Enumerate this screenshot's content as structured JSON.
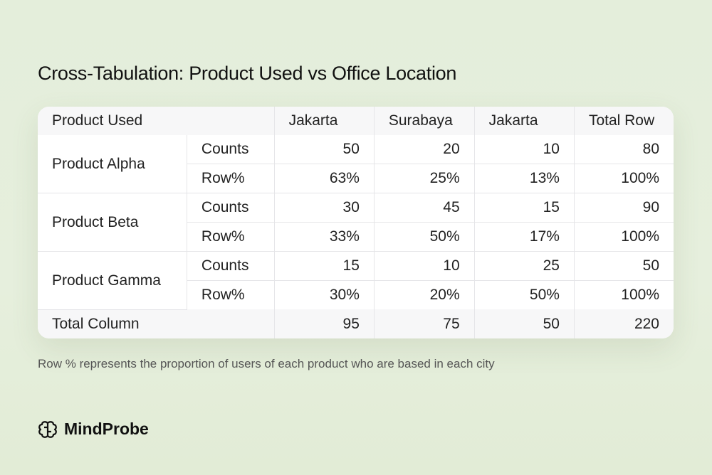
{
  "title": "Cross-Tabulation: Product Used vs Office Location",
  "table": {
    "header": [
      "Product Used",
      "Jakarta",
      "Surabaya",
      "Jakarta",
      "Total Row"
    ],
    "groups": [
      {
        "product": "Product Alpha",
        "rows": [
          {
            "measure": "Counts",
            "values": [
              "50",
              "20",
              "10",
              "80"
            ]
          },
          {
            "measure": "Row%",
            "values": [
              "63%",
              "25%",
              "13%",
              "100%"
            ]
          }
        ]
      },
      {
        "product": "Product Beta",
        "rows": [
          {
            "measure": "Counts",
            "values": [
              "30",
              "45",
              "15",
              "90"
            ]
          },
          {
            "measure": "Row%",
            "values": [
              "33%",
              "50%",
              "17%",
              "100%"
            ]
          }
        ]
      },
      {
        "product": "Product Gamma",
        "rows": [
          {
            "measure": "Counts",
            "values": [
              "15",
              "10",
              "25",
              "50"
            ]
          },
          {
            "measure": "Row%",
            "values": [
              "30%",
              "20%",
              "50%",
              "100%"
            ]
          }
        ]
      }
    ],
    "total": {
      "label": "Total Column",
      "values": [
        "95",
        "75",
        "50",
        "220"
      ]
    }
  },
  "note": "Row % represents the proportion of users of each product who are based in each city",
  "brand": {
    "name": "MindProbe",
    "icon": "brain-icon"
  }
}
